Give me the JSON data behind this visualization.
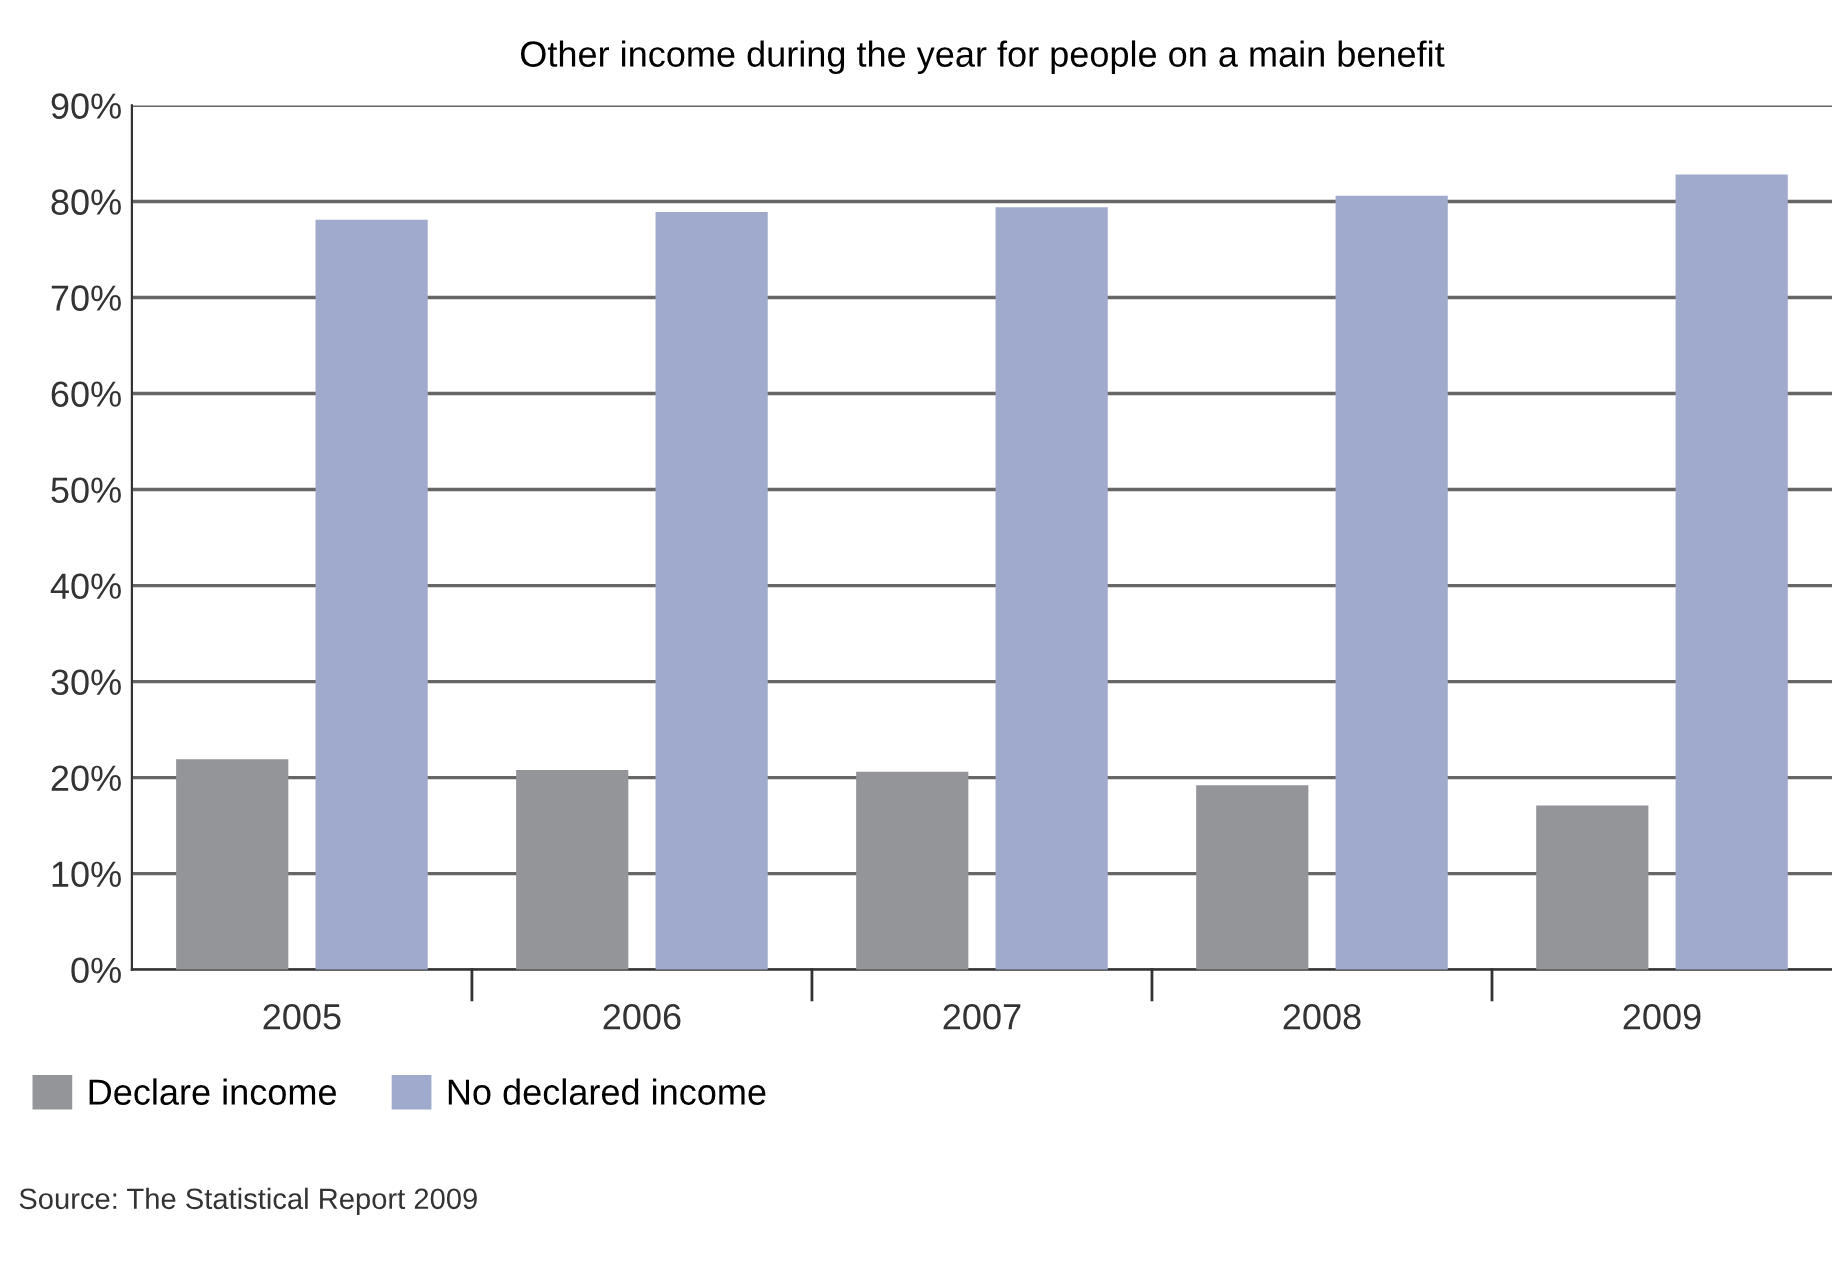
{
  "chart_data": {
    "type": "bar",
    "title": "Other income during the year for people on a main benefit",
    "categories": [
      "2005",
      "2006",
      "2007",
      "2008",
      "2009"
    ],
    "series": [
      {
        "name": "Declare income",
        "color": "#939598",
        "values": [
          21.9,
          20.8,
          20.6,
          19.2,
          17.1
        ]
      },
      {
        "name": "No declared income",
        "color": "#a0aacd",
        "values": [
          78.1,
          78.9,
          79.4,
          80.6,
          82.8
        ]
      }
    ],
    "ylim": [
      0,
      90
    ],
    "yticks": [
      {
        "value": 0,
        "label": "0%"
      },
      {
        "value": 10,
        "label": "10%"
      },
      {
        "value": 20,
        "label": "20%"
      },
      {
        "value": 30,
        "label": "30%"
      },
      {
        "value": 40,
        "label": "40%"
      },
      {
        "value": 50,
        "label": "50%"
      },
      {
        "value": 60,
        "label": "60%"
      },
      {
        "value": 70,
        "label": "70%"
      },
      {
        "value": 80,
        "label": "80%"
      },
      {
        "value": 90,
        "label": "90%"
      }
    ],
    "grid": "y",
    "legend": "bottom left",
    "annotations": [
      "Source: The Statistical Report 2009"
    ]
  }
}
